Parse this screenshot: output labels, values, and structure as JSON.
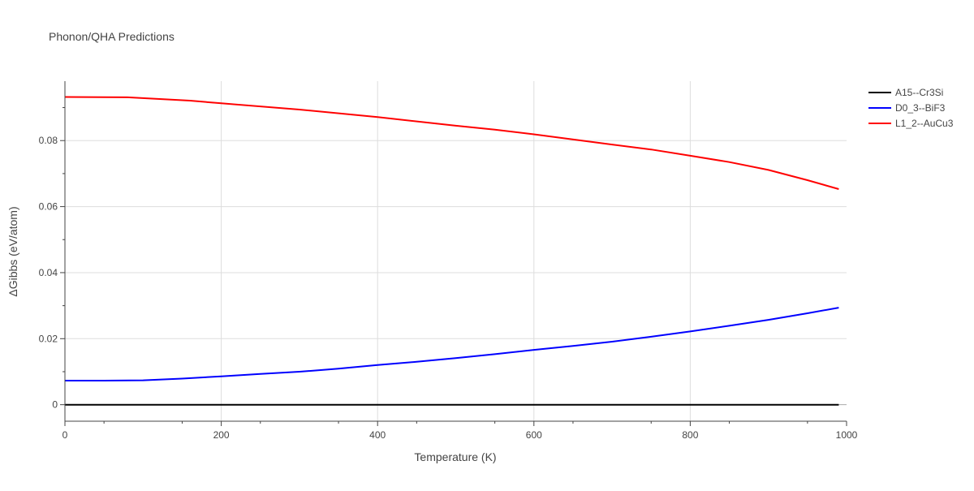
{
  "chart_data": {
    "type": "line",
    "title": "Phonon/QHA Predictions",
    "xlabel": "Temperature (K)",
    "ylabel": "ΔGibbs (eV/atom)",
    "xlim": [
      0,
      1000
    ],
    "ylim": [
      -0.005,
      0.098
    ],
    "x_ticks": [
      0,
      200,
      400,
      600,
      800,
      1000
    ],
    "x_tick_labels": [
      "0",
      "200",
      "400",
      "600",
      "800",
      "1000"
    ],
    "y_ticks": [
      0,
      0.02,
      0.04,
      0.06,
      0.08
    ],
    "y_tick_labels": [
      "0",
      "0.02",
      "0.04",
      "0.06",
      "0.08"
    ],
    "grid": true,
    "legend_position": "right",
    "series": [
      {
        "name": "A15--Cr3Si",
        "color": "#000000",
        "x": [
          0,
          100,
          200,
          300,
          400,
          500,
          600,
          700,
          800,
          900,
          990
        ],
        "y": [
          0,
          0,
          0,
          0,
          0,
          0,
          0,
          0,
          0,
          0,
          0
        ]
      },
      {
        "name": "D0_3--BiF3",
        "color": "#0000ff",
        "x": [
          0,
          50,
          100,
          150,
          200,
          250,
          300,
          350,
          400,
          450,
          500,
          550,
          600,
          650,
          700,
          750,
          800,
          850,
          900,
          950,
          990
        ],
        "y": [
          0.0073,
          0.0073,
          0.0074,
          0.0079,
          0.0086,
          0.0093,
          0.01,
          0.0109,
          0.012,
          0.013,
          0.0141,
          0.0153,
          0.0166,
          0.0178,
          0.0191,
          0.0206,
          0.0222,
          0.0239,
          0.0257,
          0.0277,
          0.0294
        ]
      },
      {
        "name": "L1_2--AuCu3",
        "color": "#ff0000",
        "x": [
          0,
          80,
          160,
          200,
          300,
          400,
          500,
          550,
          600,
          700,
          750,
          800,
          850,
          900,
          950,
          990
        ],
        "y": [
          0.0932,
          0.0931,
          0.0921,
          0.0913,
          0.0894,
          0.0871,
          0.0845,
          0.0833,
          0.0819,
          0.0788,
          0.0773,
          0.0754,
          0.0735,
          0.0711,
          0.068,
          0.0653
        ]
      }
    ]
  }
}
